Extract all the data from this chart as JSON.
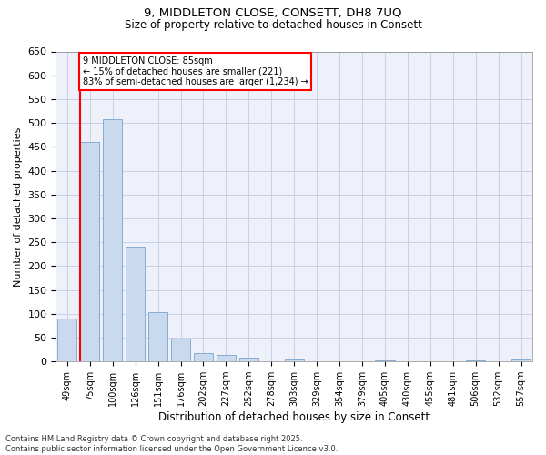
{
  "title_line1": "9, MIDDLETON CLOSE, CONSETT, DH8 7UQ",
  "title_line2": "Size of property relative to detached houses in Consett",
  "xlabel": "Distribution of detached houses by size in Consett",
  "ylabel": "Number of detached properties",
  "categories": [
    "49sqm",
    "75sqm",
    "100sqm",
    "126sqm",
    "151sqm",
    "176sqm",
    "202sqm",
    "227sqm",
    "252sqm",
    "278sqm",
    "303sqm",
    "329sqm",
    "354sqm",
    "379sqm",
    "405sqm",
    "430sqm",
    "455sqm",
    "481sqm",
    "506sqm",
    "532sqm",
    "557sqm"
  ],
  "values": [
    90,
    460,
    508,
    240,
    103,
    48,
    18,
    14,
    9,
    0,
    4,
    0,
    0,
    0,
    3,
    0,
    0,
    0,
    2,
    0,
    4
  ],
  "bar_color": "#c9d9ee",
  "bar_edge_color": "#7aa3cc",
  "vline_color": "red",
  "annotation_text": "9 MIDDLETON CLOSE: 85sqm\n← 15% of detached houses are smaller (221)\n83% of semi-detached houses are larger (1,234) →",
  "ylim": [
    0,
    650
  ],
  "yticks": [
    0,
    50,
    100,
    150,
    200,
    250,
    300,
    350,
    400,
    450,
    500,
    550,
    600,
    650
  ],
  "footer_line1": "Contains HM Land Registry data © Crown copyright and database right 2025.",
  "footer_line2": "Contains public sector information licensed under the Open Government Licence v3.0.",
  "bg_color": "#eef1f9",
  "grid_color": "#c8d0e8"
}
